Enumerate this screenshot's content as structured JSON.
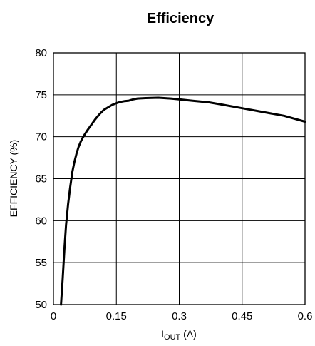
{
  "chart_data": {
    "type": "line",
    "title": "Efficiency",
    "xlabel": "I",
    "xlabel_sub": "OUT",
    "xlabel_unit": " (A)",
    "ylabel": "EFFICIENCY (%)",
    "xlim": [
      0,
      0.6
    ],
    "ylim": [
      50,
      80
    ],
    "xticks": [
      0,
      0.15,
      0.3,
      0.45,
      0.6
    ],
    "xtick_labels": [
      "0",
      "0.15",
      "0.3",
      "0.45",
      "0.6"
    ],
    "yticks": [
      50,
      55,
      60,
      65,
      70,
      75,
      80
    ],
    "ytick_labels": [
      "50",
      "55",
      "60",
      "65",
      "70",
      "75",
      "80"
    ],
    "grid": true,
    "line_color": "#000000",
    "series": [
      {
        "x": [
          0.018,
          0.022,
          0.026,
          0.03,
          0.035,
          0.04,
          0.045,
          0.05,
          0.055,
          0.06,
          0.065,
          0.07,
          0.075,
          0.08,
          0.09,
          0.1,
          0.11,
          0.12,
          0.13,
          0.14,
          0.15,
          0.16,
          0.17,
          0.18,
          0.19,
          0.2,
          0.22,
          0.25,
          0.28,
          0.3,
          0.33,
          0.37,
          0.4,
          0.45,
          0.5,
          0.55,
          0.6
        ],
        "y": [
          50,
          53,
          56.5,
          59.5,
          62,
          64,
          65.8,
          67,
          68,
          68.8,
          69.4,
          69.9,
          70.3,
          70.7,
          71.4,
          72.1,
          72.7,
          73.2,
          73.5,
          73.8,
          74.0,
          74.15,
          74.25,
          74.3,
          74.45,
          74.55,
          74.6,
          74.65,
          74.55,
          74.45,
          74.3,
          74.1,
          73.85,
          73.4,
          72.95,
          72.5,
          71.8
        ]
      }
    ]
  }
}
